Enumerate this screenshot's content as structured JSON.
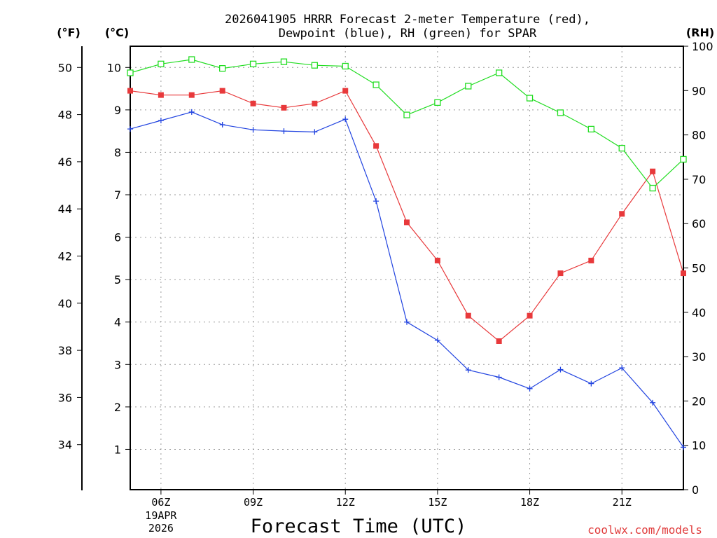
{
  "chart_data": {
    "type": "line",
    "title_line1": "2026041905 HRRR Forecast 2-meter Temperature (red),",
    "title_line2": "Dewpoint (blue), RH (green) for SPAR",
    "xlabel": "Forecast Time (UTC)",
    "watermark": "coolwx.com/models",
    "left_outer_unit": "(°F)",
    "left_inner_unit": "(°C)",
    "right_unit": "(RH)",
    "x_hours": [
      5,
      6,
      7,
      8,
      9,
      10,
      11,
      12,
      13,
      14,
      15,
      16,
      17,
      18,
      19,
      20,
      21,
      22,
      23
    ],
    "x_range": [
      5,
      23
    ],
    "x_ticks": [
      {
        "hour": 6,
        "label": "06Z",
        "date_line1": "19APR",
        "date_line2": "2026"
      },
      {
        "hour": 9,
        "label": "09Z"
      },
      {
        "hour": 12,
        "label": "12Z"
      },
      {
        "hour": 15,
        "label": "15Z"
      },
      {
        "hour": 18,
        "label": "18Z"
      },
      {
        "hour": 21,
        "label": "21Z"
      }
    ],
    "celsius_range": [
      0.05,
      10.5
    ],
    "celsius_ticks": [
      "1",
      "2",
      "3",
      "4",
      "5",
      "6",
      "7",
      "8",
      "9",
      "10"
    ],
    "fahrenheit_ticks": [
      "34",
      "36",
      "38",
      "40",
      "42",
      "44",
      "46",
      "48",
      "50"
    ],
    "rh_range": [
      0,
      100
    ],
    "rh_ticks": [
      "0",
      "10",
      "20",
      "30",
      "40",
      "50",
      "60",
      "70",
      "80",
      "90",
      "100"
    ],
    "series": [
      {
        "name": "Temperature",
        "unit": "C",
        "axis": "celsius",
        "color": "#e8393b",
        "marker": "square-filled",
        "values": [
          9.45,
          9.35,
          9.35,
          9.45,
          9.15,
          9.05,
          9.15,
          9.45,
          8.15,
          6.35,
          5.45,
          4.15,
          3.55,
          4.15,
          5.15,
          5.45,
          6.55,
          7.55,
          5.15
        ]
      },
      {
        "name": "Dewpoint",
        "unit": "C",
        "axis": "celsius",
        "color": "#2244e0",
        "marker": "plus",
        "values": [
          8.55,
          8.75,
          8.95,
          8.65,
          8.53,
          8.5,
          8.48,
          8.78,
          6.85,
          4.0,
          3.57,
          2.87,
          2.7,
          2.43,
          2.88,
          2.55,
          2.92,
          2.1,
          1.05
        ]
      },
      {
        "name": "RH",
        "unit": "%",
        "axis": "rh",
        "color": "#22dd22",
        "marker": "square-open",
        "values": [
          94,
          96,
          97,
          95,
          96,
          96.5,
          95.7,
          95.5,
          91.3,
          84.5,
          87.3,
          91,
          94,
          88.3,
          85,
          81.3,
          77,
          68,
          74.5
        ]
      }
    ]
  }
}
